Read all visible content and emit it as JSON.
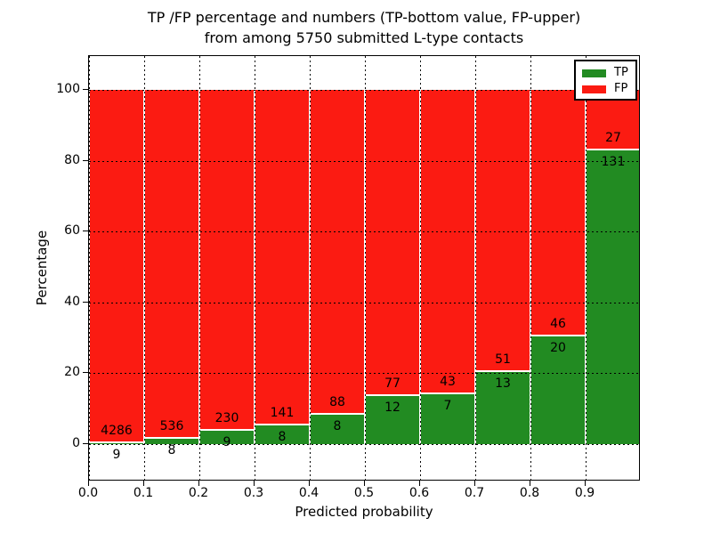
{
  "chart_data": {
    "type": "bar",
    "stacked": true,
    "normalized_to_percent": 100,
    "title_lines": [
      "TP /FP percentage and numbers (TP-bottom value, FP-upper)",
      "from among 5750 submitted L-type contacts"
    ],
    "title": "TP /FP percentage and numbers (TP-bottom value, FP-upper) from among 5750 submitted L-type contacts",
    "xlabel": "Predicted probability",
    "ylabel": "Percentage",
    "total_contacts_shown_in_title": 5750,
    "bin_width": 0.1,
    "bin_starts": [
      0.0,
      0.1,
      0.2,
      0.3,
      0.4,
      0.5,
      0.6,
      0.7,
      0.8,
      0.9
    ],
    "series": [
      {
        "name": "TP",
        "color": "#228b22",
        "counts": [
          9,
          8,
          9,
          8,
          8,
          12,
          7,
          13,
          20,
          131
        ]
      },
      {
        "name": "FP",
        "color": "#fb1b12",
        "counts": [
          4286,
          536,
          230,
          141,
          88,
          77,
          43,
          51,
          46,
          27
        ]
      }
    ],
    "x_ticks": [
      "0.0",
      "0.1",
      "0.2",
      "0.3",
      "0.4",
      "0.5",
      "0.6",
      "0.7",
      "0.8",
      "0.9"
    ],
    "y_ticks": [
      "0",
      "20",
      "40",
      "60",
      "80",
      "100"
    ],
    "xlim": [
      0.0,
      1.0
    ],
    "ylim": [
      -10.3,
      110.6
    ],
    "grid": {
      "style": "dotted",
      "color": "#000000"
    },
    "legend": {
      "position": "upper right",
      "entries": [
        "TP",
        "FP"
      ]
    },
    "bar_edge_color": "#ffffff"
  }
}
